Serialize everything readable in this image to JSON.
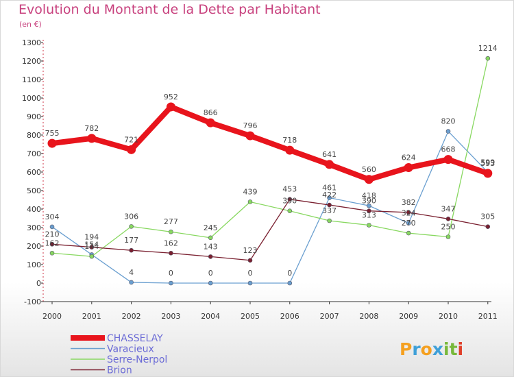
{
  "title": "Evolution du Montant de la Dette par Habitant",
  "subtitle": "(en €)",
  "logo": {
    "text": "Proxiti",
    "colors": [
      "#f5a020",
      "#3fa0d8",
      "#f5a020",
      "#3fa0d8",
      "#78b83a",
      "#78b83a",
      "#e0402a"
    ]
  },
  "chart_data": {
    "type": "line",
    "x": [
      "2000",
      "2001",
      "2002",
      "2003",
      "2004",
      "2005",
      "2006",
      "2007",
      "2008",
      "2009",
      "2010",
      "2011"
    ],
    "ylim": [
      -100,
      1300
    ],
    "yticks": [
      "-100",
      "0",
      "100",
      "200",
      "300",
      "400",
      "500",
      "600",
      "700",
      "800",
      "900",
      "1000",
      "1100",
      "1200",
      "1300"
    ],
    "grid": false,
    "legend": "bottom-left",
    "series": [
      {
        "name": "CHASSELAY",
        "color": "#e8141c",
        "width": 8,
        "values": [
          755,
          782,
          721,
          952,
          866,
          796,
          718,
          641,
          560,
          624,
          668,
          593
        ],
        "labels": [
          "755",
          "782",
          "721",
          "952",
          "866",
          "796",
          "718",
          "641",
          "560",
          "624",
          "668",
          "593"
        ]
      },
      {
        "name": "Varacieux",
        "color": "#6a9fd0",
        "width": 1.3,
        "values": [
          304,
          154,
          4,
          0,
          0,
          0,
          0,
          461,
          418,
          324,
          820,
          599
        ],
        "labels": [
          "304",
          "154",
          "4",
          "0",
          "0",
          "0",
          "0",
          "461",
          "418",
          "324",
          "820",
          "599"
        ]
      },
      {
        "name": "Serre-Nerpol",
        "color": "#88d860",
        "width": 1.3,
        "values": [
          162,
          144,
          306,
          277,
          245,
          439,
          390,
          337,
          313,
          270,
          250,
          1214
        ],
        "labels": [
          "162",
          "144",
          "306",
          "277",
          "245",
          "439",
          "390",
          "337",
          "313",
          "270",
          "250",
          "1214"
        ]
      },
      {
        "name": "Brion",
        "color": "#7a2030",
        "width": 1.3,
        "values": [
          210,
          194,
          177,
          162,
          143,
          123,
          453,
          422,
          390,
          382,
          347,
          305
        ],
        "labels": [
          "210",
          "194",
          "177",
          "162",
          "143",
          "123",
          "453",
          "422",
          "390",
          "382",
          "347",
          "305"
        ]
      }
    ]
  }
}
